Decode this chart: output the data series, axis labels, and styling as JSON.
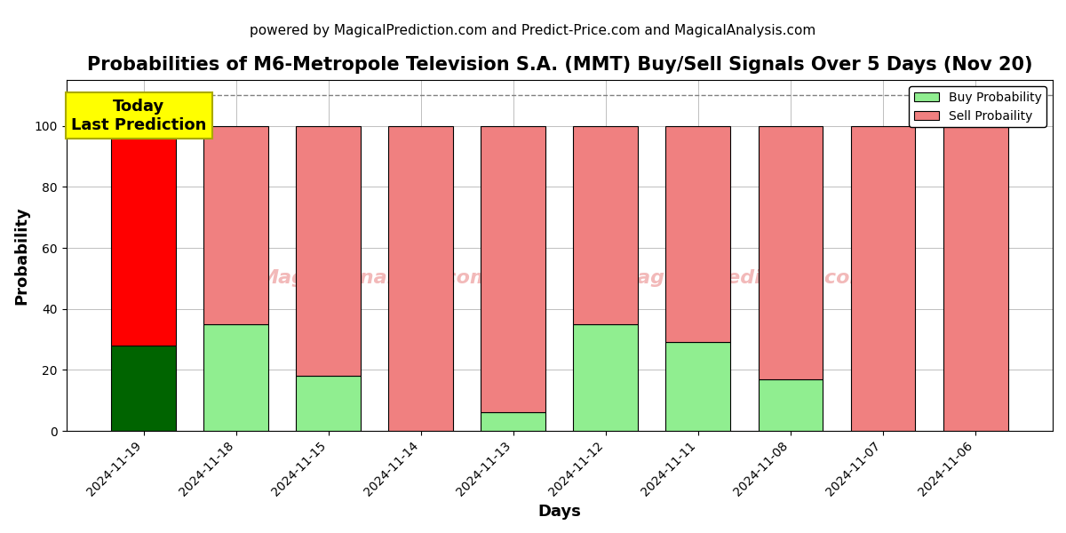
{
  "title": "Probabilities of M6-Metropole Television S.A. (MMT) Buy/Sell Signals Over 5 Days (Nov 20)",
  "subtitle": "powered by MagicalPrediction.com and Predict-Price.com and MagicalAnalysis.com",
  "xlabel": "Days",
  "ylabel": "Probability",
  "dates": [
    "2024-11-19",
    "2024-11-18",
    "2024-11-15",
    "2024-11-14",
    "2024-11-13",
    "2024-11-12",
    "2024-11-11",
    "2024-11-08",
    "2024-11-07",
    "2024-11-06"
  ],
  "buy_values": [
    28,
    35,
    18,
    0,
    6,
    35,
    29,
    17,
    0,
    0
  ],
  "sell_values": [
    72,
    65,
    82,
    100,
    94,
    65,
    71,
    83,
    100,
    100
  ],
  "today_buy_color": "#006400",
  "today_sell_color": "#ff0000",
  "buy_color": "#90EE90",
  "sell_color": "#F08080",
  "today_annotation_bg": "#ffff00",
  "today_annotation_text": "Today\nLast Prediction",
  "ylim": [
    0,
    115
  ],
  "dashed_line_y": 110,
  "legend_buy_label": "Buy Probability",
  "legend_sell_label": "Sell Probaility",
  "bar_width": 0.7,
  "title_fontsize": 15,
  "subtitle_fontsize": 11,
  "axis_label_fontsize": 13,
  "tick_fontsize": 10
}
